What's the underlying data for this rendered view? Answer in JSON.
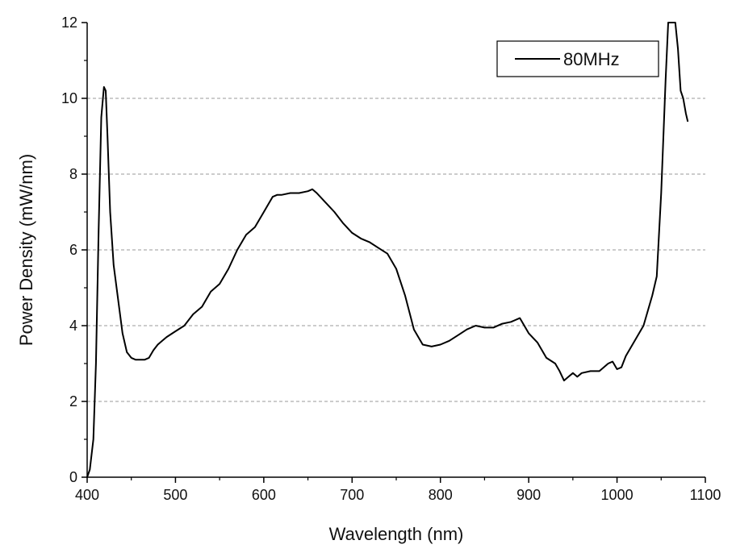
{
  "chart_data": {
    "type": "line",
    "xlabel": "Wavelength (nm)",
    "ylabel": "Power Density (mW/nm)",
    "xlim": [
      400,
      1100
    ],
    "ylim": [
      0,
      12
    ],
    "xticks": [
      400,
      500,
      600,
      700,
      800,
      900,
      1000,
      1100
    ],
    "yticks": [
      0,
      2,
      4,
      6,
      8,
      10,
      12
    ],
    "grid": "horizontal dashed",
    "legend_position": "top-right",
    "colors": {
      "line": "#000000",
      "grid": "#9a9a9a",
      "axis": "#000000"
    },
    "series": [
      {
        "name": "80MHz",
        "x": [
          400,
          403,
          407,
          410,
          413,
          416,
          419,
          421,
          423,
          426,
          430,
          435,
          440,
          445,
          450,
          455,
          460,
          465,
          470,
          475,
          480,
          485,
          490,
          500,
          510,
          520,
          530,
          540,
          550,
          560,
          570,
          580,
          590,
          600,
          610,
          615,
          620,
          630,
          640,
          650,
          655,
          660,
          670,
          680,
          690,
          700,
          710,
          720,
          730,
          740,
          750,
          760,
          770,
          780,
          790,
          800,
          810,
          820,
          830,
          840,
          850,
          860,
          870,
          880,
          890,
          900,
          910,
          920,
          930,
          935,
          940,
          945,
          950,
          955,
          960,
          970,
          980,
          990,
          995,
          1000,
          1005,
          1010,
          1020,
          1030,
          1040,
          1045,
          1050,
          1055,
          1058,
          1062,
          1066,
          1069,
          1072,
          1075,
          1078,
          1080
        ],
        "y": [
          0.0,
          0.2,
          1.0,
          3.0,
          6.5,
          9.5,
          10.3,
          10.2,
          9.0,
          7.0,
          5.6,
          4.7,
          3.8,
          3.3,
          3.15,
          3.1,
          3.1,
          3.1,
          3.15,
          3.35,
          3.5,
          3.6,
          3.7,
          3.85,
          4.0,
          4.3,
          4.5,
          4.9,
          5.1,
          5.5,
          6.0,
          6.4,
          6.6,
          7.0,
          7.4,
          7.45,
          7.45,
          7.5,
          7.5,
          7.55,
          7.6,
          7.5,
          7.25,
          7.0,
          6.7,
          6.45,
          6.3,
          6.2,
          6.05,
          5.9,
          5.5,
          4.8,
          3.9,
          3.5,
          3.45,
          3.5,
          3.6,
          3.75,
          3.9,
          4.0,
          3.95,
          3.95,
          4.05,
          4.1,
          4.2,
          3.8,
          3.55,
          3.15,
          3.0,
          2.8,
          2.55,
          2.65,
          2.75,
          2.65,
          2.75,
          2.8,
          2.8,
          3.0,
          3.05,
          2.85,
          2.9,
          3.2,
          3.6,
          4.0,
          4.8,
          5.3,
          7.5,
          10.5,
          12.0,
          12.0,
          12.0,
          11.3,
          10.2,
          10.0,
          9.6,
          9.4
        ]
      }
    ]
  }
}
